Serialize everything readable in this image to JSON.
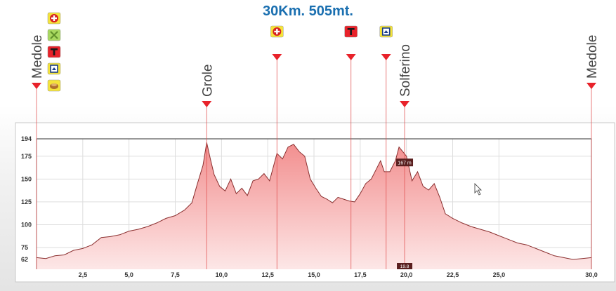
{
  "title": "30Km. 505mt.",
  "chart_data": {
    "type": "area",
    "title": "30Km. 505mt.",
    "x_ticks": [
      "2,5",
      "5,0",
      "7,5",
      "10,0",
      "12,5",
      "15,0",
      "17,5",
      "20,0",
      "22,5",
      "25,0",
      "30,0"
    ],
    "x_tick_values": [
      2.5,
      5.0,
      7.5,
      10.0,
      12.5,
      15.0,
      17.5,
      20.0,
      22.5,
      25.0,
      30.0
    ],
    "y_ticks": [
      "194",
      "175",
      "150",
      "125",
      "100",
      "75",
      "62"
    ],
    "y_tick_values": [
      194,
      175,
      150,
      125,
      100,
      75,
      62
    ],
    "xlim": [
      0,
      30
    ],
    "ylim": [
      55,
      200
    ],
    "max_line": 194,
    "grid": true,
    "fill_color": "#f4a6a6",
    "line_color": "#8a2f2f",
    "marker_color": "#e8222a",
    "x": [
      0,
      0.5,
      1,
      1.5,
      2,
      2.5,
      3,
      3.5,
      4,
      4.5,
      5,
      5.5,
      6,
      6.5,
      7,
      7.5,
      8,
      8.4,
      8.7,
      9.0,
      9.2,
      9.4,
      9.6,
      9.9,
      10.2,
      10.5,
      10.8,
      11.1,
      11.4,
      11.7,
      12.0,
      12.3,
      12.6,
      13.0,
      13.3,
      13.6,
      13.9,
      14.2,
      14.5,
      14.8,
      15.1,
      15.4,
      15.7,
      16.0,
      16.3,
      16.6,
      16.9,
      17.2,
      17.5,
      17.8,
      18.1,
      18.4,
      18.6,
      18.8,
      19.1,
      19.4,
      19.6,
      19.8,
      20.0,
      20.3,
      20.6,
      20.9,
      21.2,
      21.5,
      21.8,
      22.1,
      22.5,
      23,
      23.5,
      24,
      24.5,
      25,
      25.5,
      26,
      26.5,
      27,
      27.5,
      28,
      28.5,
      29,
      29.5,
      30
    ],
    "y": [
      64,
      63,
      66,
      67,
      72,
      74,
      78,
      86,
      87,
      89,
      93,
      95,
      98,
      102,
      107,
      110,
      116,
      124,
      145,
      165,
      190,
      172,
      155,
      142,
      137,
      150,
      134,
      140,
      132,
      148,
      150,
      156,
      148,
      178,
      172,
      185,
      188,
      180,
      175,
      150,
      140,
      131,
      128,
      124,
      130,
      128,
      126,
      125,
      134,
      145,
      150,
      162,
      170,
      158,
      158,
      170,
      185,
      180,
      175,
      148,
      158,
      142,
      138,
      145,
      130,
      112,
      107,
      102,
      98,
      95,
      92,
      88,
      84,
      80,
      78,
      74,
      70,
      66,
      64,
      62,
      63,
      64
    ],
    "pois": [
      {
        "label": "Medole",
        "km": 0,
        "icons": [
          "red-cross-icon",
          "tools-icon",
          "t-sign-icon",
          "house-icon",
          "food-icon"
        ]
      },
      {
        "label": "Grole",
        "km": 9.2,
        "icons": []
      },
      {
        "label": "",
        "km": 13.0,
        "icons": [
          "red-cross-icon"
        ]
      },
      {
        "label": "",
        "km": 17.0,
        "icons": [
          "t-sign-icon"
        ]
      },
      {
        "label": "",
        "km": 18.9,
        "icons": [
          "house-icon"
        ]
      },
      {
        "label": "Solferino",
        "km": 19.9,
        "icons": []
      },
      {
        "label": "Medole",
        "km": 30.0,
        "icons": []
      }
    ],
    "cursor": {
      "km": 19.9,
      "elevation_label": "167 m",
      "distance_label": "19.8"
    }
  }
}
